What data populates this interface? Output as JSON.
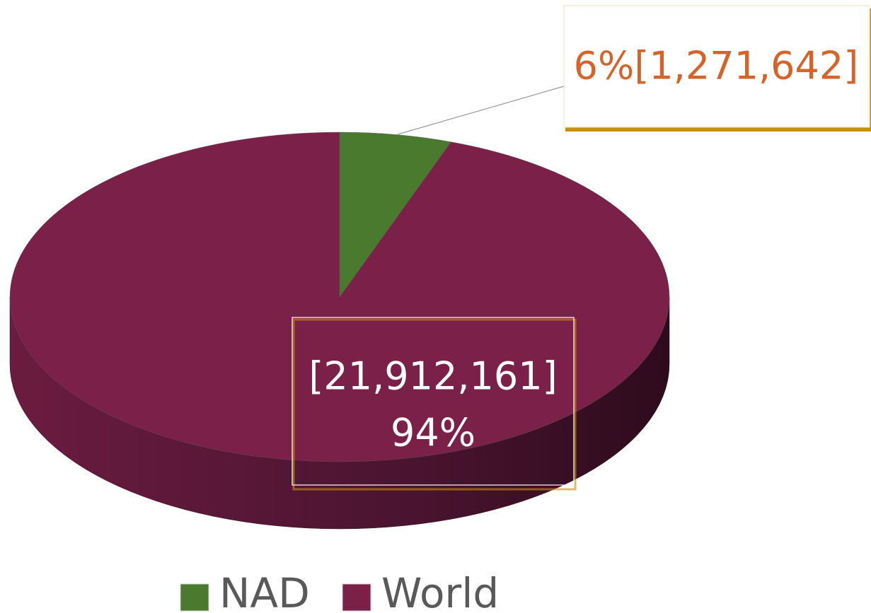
{
  "chart_data": {
    "type": "pie",
    "categories": [
      "NAD",
      "World"
    ],
    "values": [
      1271642,
      21912161
    ],
    "value_labels": [
      "6%[1,271,642]",
      [
        "[21,912,161]",
        "94%"
      ]
    ],
    "colors": [
      "#4a7a2e",
      "#7b2049"
    ],
    "legend": "bottom"
  }
}
